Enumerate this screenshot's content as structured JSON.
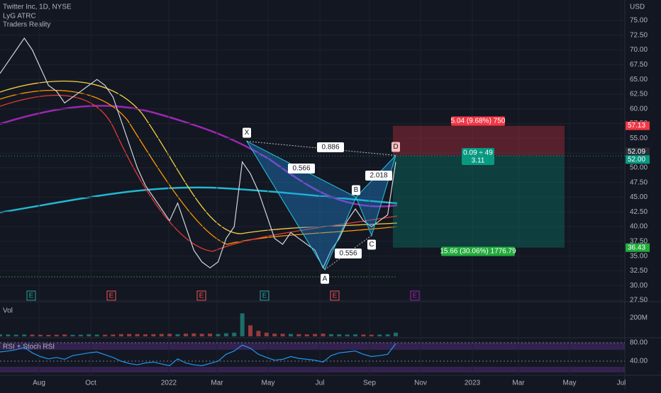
{
  "header": {
    "title": "Twitter Inc, 1D, NYSE",
    "indicators": [
      "LyG ATRC",
      "Traders Reality"
    ]
  },
  "price_axis": {
    "unit": "USD",
    "ticks": [
      {
        "value": 75,
        "label": "75.00"
      },
      {
        "value": 72.5,
        "label": "72.50"
      },
      {
        "value": 70,
        "label": "70.00"
      },
      {
        "value": 67.5,
        "label": "67.50"
      },
      {
        "value": 65,
        "label": "65.00"
      },
      {
        "value": 62.5,
        "label": "62.50"
      },
      {
        "value": 60,
        "label": "60.00"
      },
      {
        "value": 57.5,
        "label": "57.50"
      },
      {
        "value": 55,
        "label": "55.00"
      },
      {
        "value": 52.5,
        "label": "52.50"
      },
      {
        "value": 50,
        "label": "50.00"
      },
      {
        "value": 47.5,
        "label": "47.50"
      },
      {
        "value": 45,
        "label": "45.00"
      },
      {
        "value": 42.5,
        "label": "42.50"
      },
      {
        "value": 40,
        "label": "40.00"
      },
      {
        "value": 37.5,
        "label": "37.50"
      },
      {
        "value": 35,
        "label": "35.00"
      },
      {
        "value": 32.5,
        "label": "32.50"
      },
      {
        "value": 30,
        "label": "30.00"
      },
      {
        "value": 27.5,
        "label": "27.50"
      }
    ],
    "markers": [
      {
        "value": 57.13,
        "label": "57.13",
        "color": "#f23645"
      },
      {
        "value": 52.09,
        "label": "52.09",
        "color": "#2a2e39"
      },
      {
        "value": 52,
        "label": "52.00",
        "color": "#089981"
      },
      {
        "value": 36.43,
        "label": "36.43",
        "color": "#22ab3c"
      }
    ]
  },
  "time_axis": {
    "labels": [
      "Aug",
      "Oct",
      "2022",
      "Mar",
      "May",
      "Jul",
      "Sep",
      "Nov",
      "2023",
      "Mar",
      "May",
      "Jul"
    ]
  },
  "close": [
    66,
    68,
    70,
    72,
    70,
    67,
    64,
    63,
    61,
    62,
    63,
    64,
    65,
    64,
    62,
    58,
    54,
    50,
    47,
    45,
    43,
    41,
    44,
    40,
    36,
    34,
    33,
    34,
    38,
    40,
    51,
    49,
    46,
    42,
    38,
    37,
    39,
    38,
    37,
    36,
    33,
    36,
    38,
    41,
    43,
    41,
    40,
    41,
    42,
    51
  ],
  "pattern": {
    "points": [
      {
        "name": "X",
        "price": 54.5
      },
      {
        "name": "A",
        "price": 32.7
      },
      {
        "name": "B",
        "price": 45
      },
      {
        "name": "C",
        "price": 38.5
      },
      {
        "name": "D",
        "price": 52.09
      }
    ],
    "ratios": [
      0.886,
      0.566,
      2.018,
      0.556
    ]
  },
  "position": {
    "stop_label": "5.04 (9.68%) 750",
    "entry_label": [
      "0.09 ÷ 49",
      "3.11"
    ],
    "target_label": "15.66 (30.06%) 1776.79"
  },
  "earnings": [
    {
      "label": "E",
      "color": "#26a69a"
    },
    {
      "label": "E",
      "color": "#ef5350"
    },
    {
      "label": "E",
      "color": "#ef5350"
    },
    {
      "label": "E",
      "color": "#26a69a"
    },
    {
      "label": "E",
      "color": "#ef5350"
    },
    {
      "label": "E",
      "color": "#9c27b0"
    }
  ],
  "volume": {
    "title": "Vol",
    "ticks": [
      {
        "value": 200,
        "label": "200M"
      }
    ],
    "values": [
      22,
      20,
      18,
      20,
      19,
      17,
      16,
      18,
      20,
      17,
      18,
      22,
      19,
      18,
      20,
      24,
      26,
      25,
      22,
      24,
      26,
      28,
      24,
      30,
      32,
      28,
      30,
      26,
      34,
      40,
      250,
      120,
      60,
      40,
      30,
      28,
      26,
      24,
      22,
      26,
      30,
      24,
      22,
      20,
      22,
      20,
      18,
      20,
      22,
      40
    ]
  },
  "rsi": {
    "title": "RSI + Stoch RSI",
    "ticks": [
      {
        "value": 80,
        "label": "80.00"
      },
      {
        "value": 40,
        "label": "40.00"
      }
    ],
    "values": [
      60,
      62,
      65,
      70,
      58,
      50,
      45,
      48,
      44,
      52,
      55,
      58,
      60,
      54,
      48,
      40,
      35,
      32,
      36,
      38,
      34,
      30,
      45,
      36,
      32,
      30,
      35,
      40,
      55,
      62,
      75,
      68,
      55,
      48,
      42,
      44,
      50,
      46,
      44,
      42,
      38,
      52,
      58,
      60,
      62,
      55,
      50,
      52,
      55,
      78
    ]
  }
}
